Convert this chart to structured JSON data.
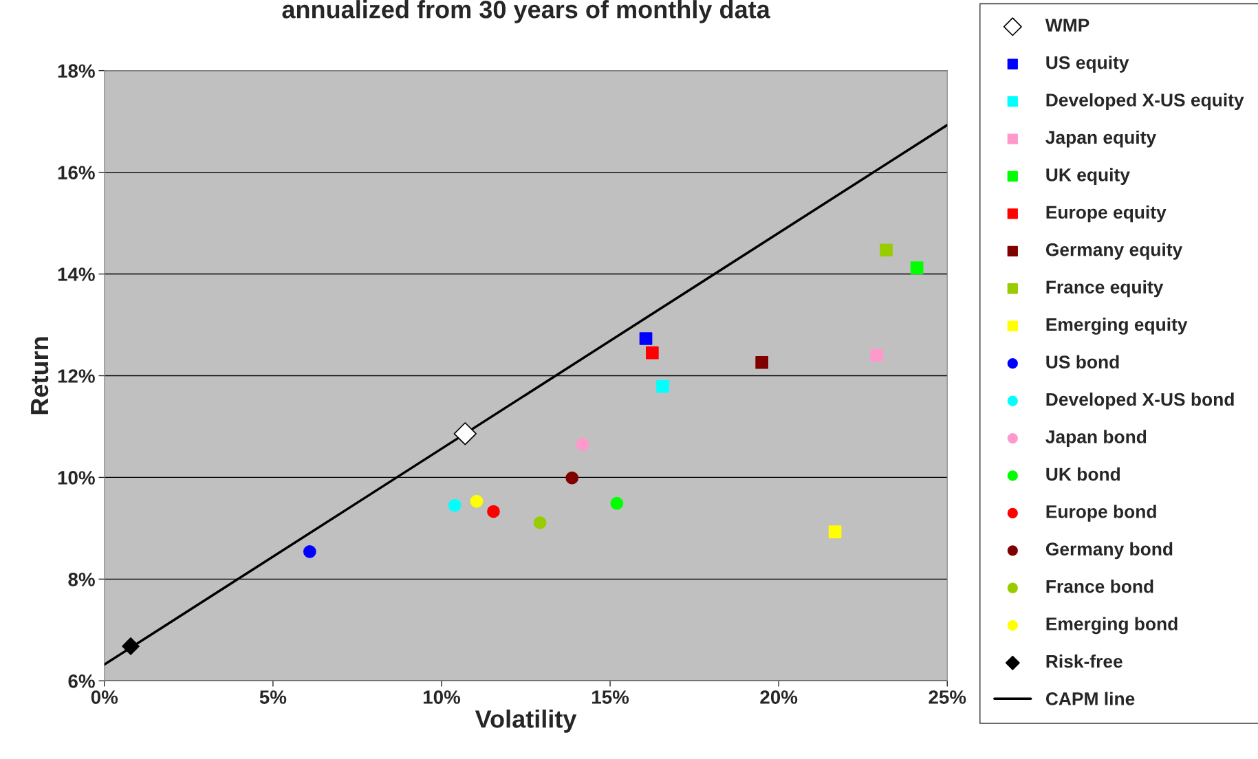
{
  "chart_data": {
    "type": "scatter",
    "title": "annualized from 30 years of monthly data",
    "xlabel": "Volatility",
    "ylabel": "Return",
    "xlim": [
      0,
      25
    ],
    "ylim": [
      6,
      18
    ],
    "xticks": [
      {
        "value": 0,
        "label": "0%"
      },
      {
        "value": 5,
        "label": "5%"
      },
      {
        "value": 10,
        "label": "10%"
      },
      {
        "value": 15,
        "label": "15%"
      },
      {
        "value": 20,
        "label": "20%"
      },
      {
        "value": 25,
        "label": "25%"
      }
    ],
    "yticks": [
      {
        "value": 6,
        "label": "6%"
      },
      {
        "value": 8,
        "label": "8%"
      },
      {
        "value": 10,
        "label": "10%"
      },
      {
        "value": 12,
        "label": "12%"
      },
      {
        "value": 14,
        "label": "14%"
      },
      {
        "value": 16,
        "label": "16%"
      },
      {
        "value": 18,
        "label": "18%"
      }
    ],
    "grid": "y",
    "legend": "right",
    "series": [
      {
        "name": "WMP",
        "marker": "diamond",
        "color": "#ffffff",
        "x": [
          10.7
        ],
        "values": [
          10.86
        ]
      },
      {
        "name": "US equity",
        "marker": "square",
        "color": "#0000ff",
        "x": [
          16.06
        ],
        "values": [
          12.73
        ]
      },
      {
        "name": "Developed X-US equity",
        "marker": "square",
        "color": "#00ffff",
        "x": [
          16.56
        ],
        "values": [
          11.79
        ]
      },
      {
        "name": "Japan equity",
        "marker": "square",
        "color": "#ff99cc",
        "x": [
          22.91
        ],
        "values": [
          12.4
        ]
      },
      {
        "name": "UK equity",
        "marker": "square",
        "color": "#00ff00",
        "x": [
          24.1
        ],
        "values": [
          14.12
        ]
      },
      {
        "name": "Europe equity",
        "marker": "square",
        "color": "#ff0000",
        "x": [
          16.25
        ],
        "values": [
          12.45
        ]
      },
      {
        "name": "Germany equity",
        "marker": "square",
        "color": "#800000",
        "x": [
          19.5
        ],
        "values": [
          12.26
        ]
      },
      {
        "name": "France equity",
        "marker": "square",
        "color": "#99cc00",
        "x": [
          23.19
        ],
        "values": [
          14.47
        ]
      },
      {
        "name": "Emerging equity",
        "marker": "square",
        "color": "#ffff00",
        "x": [
          21.67
        ],
        "values": [
          8.93
        ]
      },
      {
        "name": "US bond",
        "marker": "circle",
        "color": "#0000ff",
        "x": [
          6.09
        ],
        "values": [
          8.54
        ]
      },
      {
        "name": "Developed X-US bond",
        "marker": "circle",
        "color": "#00ffff",
        "x": [
          10.39
        ],
        "values": [
          9.45
        ]
      },
      {
        "name": "Japan bond",
        "marker": "circle",
        "color": "#ff99cc",
        "x": [
          14.18
        ],
        "values": [
          10.65
        ]
      },
      {
        "name": "UK bond",
        "marker": "circle",
        "color": "#00ff00",
        "x": [
          15.2
        ],
        "values": [
          9.49
        ]
      },
      {
        "name": "Europe bond",
        "marker": "circle",
        "color": "#ff0000",
        "x": [
          11.54
        ],
        "values": [
          9.33
        ]
      },
      {
        "name": "Germany bond",
        "marker": "circle",
        "color": "#800000",
        "x": [
          13.87
        ],
        "values": [
          9.99
        ]
      },
      {
        "name": "France bond",
        "marker": "circle",
        "color": "#99cc00",
        "x": [
          12.92
        ],
        "values": [
          9.11
        ]
      },
      {
        "name": "Emerging bond",
        "marker": "circle",
        "color": "#ffff00",
        "x": [
          11.04
        ],
        "values": [
          9.53
        ]
      },
      {
        "name": "Risk-free",
        "marker": "diamond",
        "color": "#000000",
        "x": [
          0.78
        ],
        "values": [
          6.68
        ]
      },
      {
        "name": "CAPM line",
        "type": "line",
        "marker": "none",
        "line_style": "solid",
        "color": "#000000",
        "x": [
          0,
          25
        ],
        "values": [
          6.32,
          16.93
        ]
      }
    ]
  }
}
